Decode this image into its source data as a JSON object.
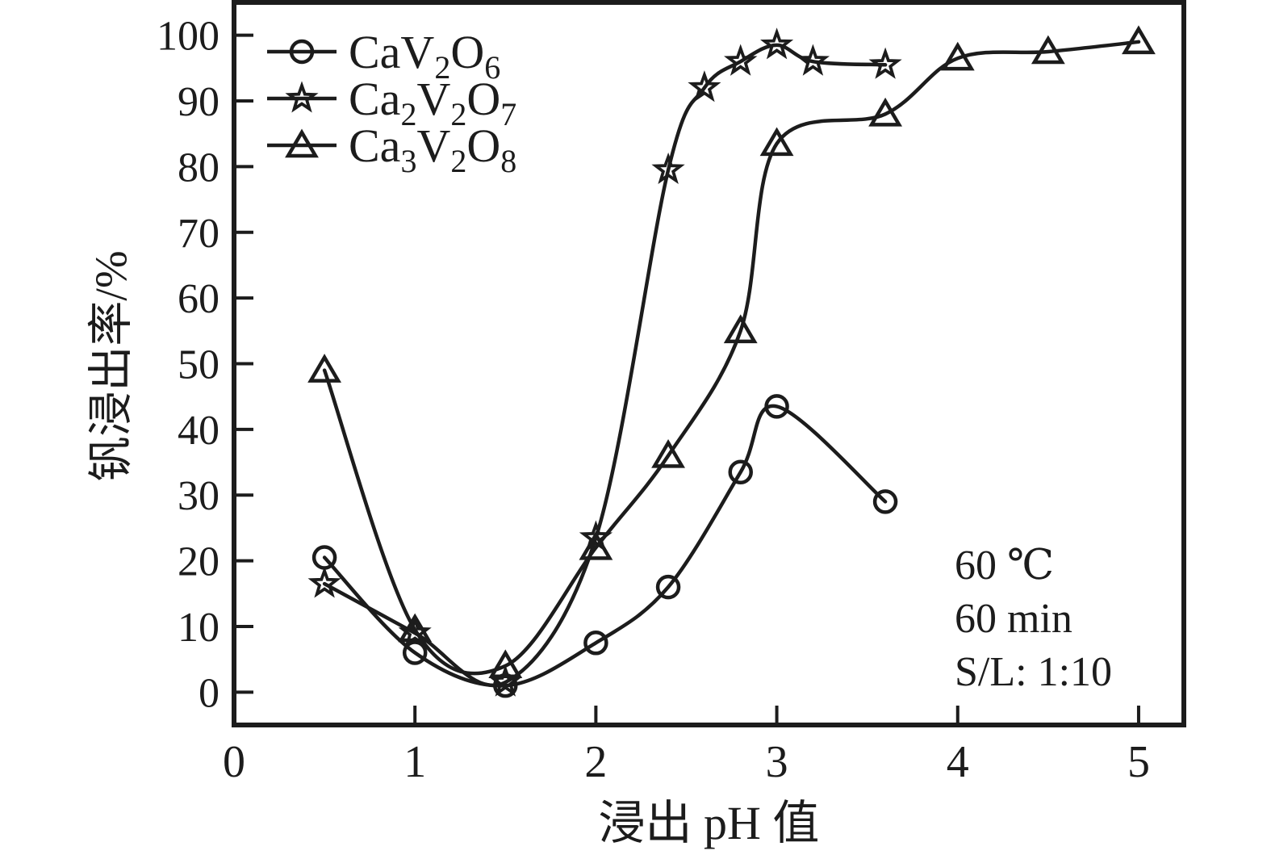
{
  "chart_data": {
    "type": "line",
    "title": "",
    "xlabel": "浸出 pH 值",
    "ylabel": "钒浸出率/%",
    "xlim": [
      0,
      5.25
    ],
    "ylim": [
      -5,
      105
    ],
    "xticks": [
      0,
      1,
      2,
      3,
      4,
      5
    ],
    "yticks": [
      0,
      10,
      20,
      30,
      40,
      50,
      60,
      70,
      80,
      90,
      100
    ],
    "grid": false,
    "legend_position": "top-left",
    "line_color": "#1c1c1c",
    "background_color": "#ffffff",
    "series": [
      {
        "name": "CaV2O6",
        "marker": "circle",
        "label_parts": [
          {
            "text": "CaV"
          },
          {
            "text": "2",
            "sub": true
          },
          {
            "text": "O"
          },
          {
            "text": "6",
            "sub": true
          }
        ],
        "points": [
          [
            0.5,
            20.5
          ],
          [
            1,
            6
          ],
          [
            1.5,
            1
          ],
          [
            2,
            7.5
          ],
          [
            2.4,
            16
          ],
          [
            2.8,
            33.5
          ],
          [
            3,
            43.5
          ],
          [
            3.6,
            29
          ]
        ]
      },
      {
        "name": "Ca2V2O7",
        "marker": "star",
        "label_parts": [
          {
            "text": "Ca"
          },
          {
            "text": "2",
            "sub": true
          },
          {
            "text": "V"
          },
          {
            "text": "2",
            "sub": true
          },
          {
            "text": "O"
          },
          {
            "text": "7",
            "sub": true
          }
        ],
        "points": [
          [
            0.5,
            16.5
          ],
          [
            1,
            9
          ],
          [
            1.5,
            1.5
          ],
          [
            2,
            23.5
          ],
          [
            2.4,
            79.5
          ],
          [
            2.6,
            92
          ],
          [
            2.8,
            96
          ],
          [
            3,
            98.5
          ],
          [
            3.2,
            96
          ],
          [
            3.6,
            95.5
          ]
        ]
      },
      {
        "name": "Ca3V2O8",
        "marker": "triangle",
        "label_parts": [
          {
            "text": "Ca"
          },
          {
            "text": "3",
            "sub": true
          },
          {
            "text": "V"
          },
          {
            "text": "2",
            "sub": true
          },
          {
            "text": "O"
          },
          {
            "text": "8",
            "sub": true
          }
        ],
        "points": [
          [
            0.5,
            49
          ],
          [
            1,
            9.5
          ],
          [
            1.5,
            4
          ],
          [
            2,
            22
          ],
          [
            2.4,
            36
          ],
          [
            2.8,
            55
          ],
          [
            3,
            83.5
          ],
          [
            3.6,
            88
          ],
          [
            4,
            96.5
          ],
          [
            4.5,
            97.5
          ],
          [
            5,
            99
          ]
        ]
      }
    ],
    "annotations": [
      "60 ℃",
      "60 min",
      "S/L: 1:10"
    ]
  }
}
